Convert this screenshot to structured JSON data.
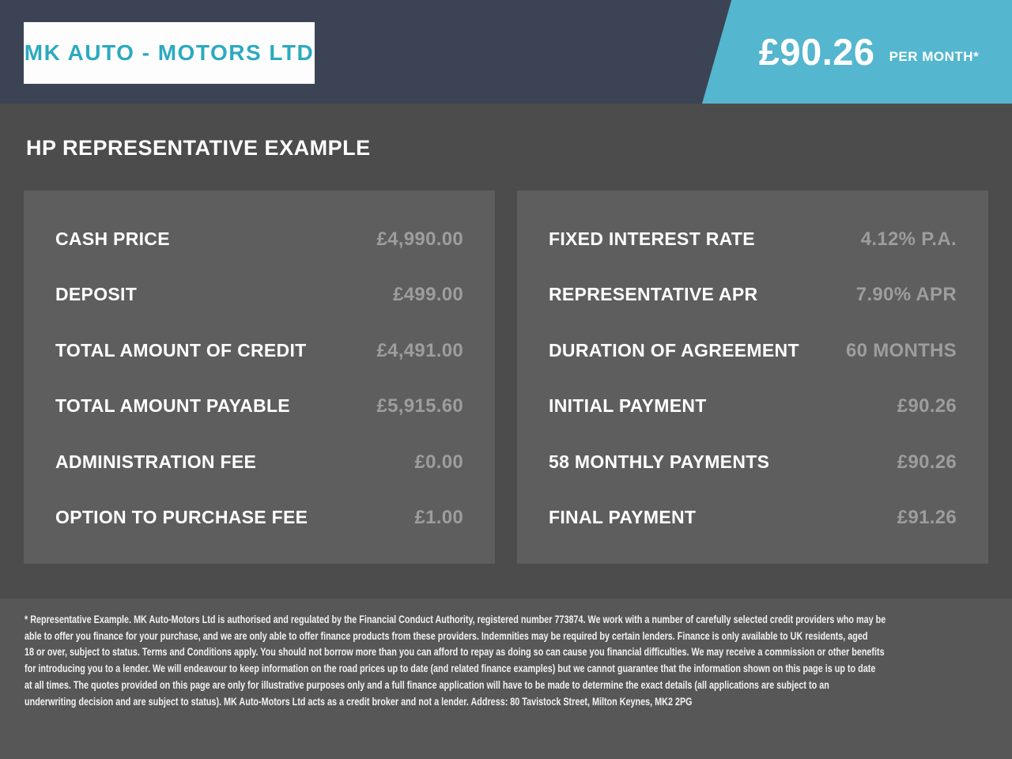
{
  "header": {
    "logo_text": "MK AUTO - MOTORS LTD",
    "price": "£90.26",
    "price_suffix": "PER MONTH*"
  },
  "page_title": "HP REPRESENTATIVE EXAMPLE",
  "panels": {
    "left": {
      "rows": [
        {
          "label": "CASH PRICE",
          "value": "£4,990.00"
        },
        {
          "label": "DEPOSIT",
          "value": "£499.00"
        },
        {
          "label": "TOTAL AMOUNT OF CREDIT",
          "value": "£4,491.00"
        },
        {
          "label": "TOTAL AMOUNT PAYABLE",
          "value": "£5,915.60"
        },
        {
          "label": "ADMINISTRATION FEE",
          "value": "£0.00"
        },
        {
          "label": "OPTION TO PURCHASE FEE",
          "value": "£1.00"
        }
      ]
    },
    "right": {
      "rows": [
        {
          "label": "FIXED INTEREST RATE",
          "value": "4.12% P.A."
        },
        {
          "label": "REPRESENTATIVE APR",
          "value": "7.90% APR"
        },
        {
          "label": "DURATION OF AGREEMENT",
          "value": "60 MONTHS"
        },
        {
          "label": "INITIAL PAYMENT",
          "value": "£90.26"
        },
        {
          "label": "58 MONTHLY PAYMENTS",
          "value": "£90.26"
        },
        {
          "label": "FINAL PAYMENT",
          "value": "£91.26"
        }
      ]
    }
  },
  "footer": {
    "lines": [
      "* Representative Example. MK Auto-Motors Ltd is authorised and regulated by the Financial Conduct Authority, registered number 773874. We work with a number of carefully selected credit providers who may be",
      "able to offer you finance for your purchase, and we are only able to offer finance products from these providers. Indemnities may be required by certain lenders. Finance is only available to UK residents, aged",
      "18 or over, subject to status. Terms and Conditions apply. You should not borrow more than you can afford to repay as doing so can cause you financial difficulties. We may receive a commission or other benefits",
      "for introducing you to a lender. We will endeavour to keep information on the road prices up to date (and related finance examples) but we cannot guarantee that the information shown on this page is up to date",
      "at all times. The quotes provided on this page are only for illustrative purposes only and a full finance application will have to be made to determine the exact details (all applications are subject to an",
      "underwriting decision and are subject to status). MK Auto-Motors Ltd acts as a credit broker and not a lender. Address: 80 Tavistock Street, Milton Keynes, MK2 2PG"
    ]
  },
  "colors": {
    "header_navy": "#3c4354",
    "ribbon_teal": "#54b6cf",
    "logo_teal": "#2baabf",
    "page_background": "#4c4c4c",
    "panel_background": "#5e5e5e",
    "footer_background": "#575757",
    "value_gray": "#9d9d9d"
  }
}
